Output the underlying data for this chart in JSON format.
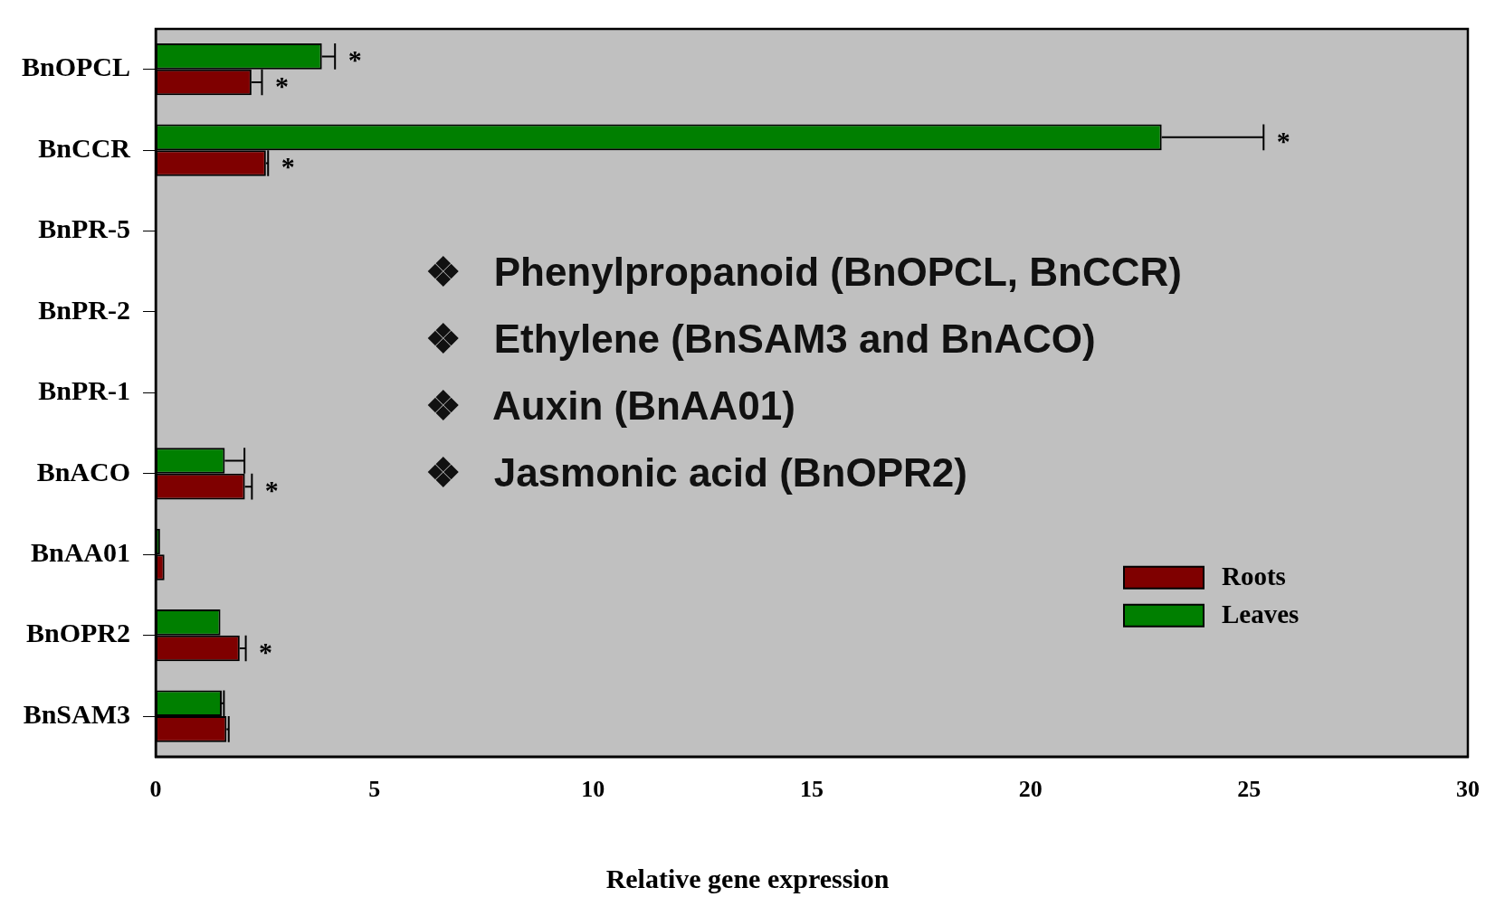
{
  "chart_data": {
    "type": "bar",
    "orientation": "horizontal",
    "xlabel": "Relative gene expression",
    "categories": [
      "BnOPCL",
      "BnCCR",
      "BnPR-5",
      "BnPR-2",
      "BnPR-1",
      "BnACO",
      "BnAA01",
      "BnOPR2",
      "BnSAM3"
    ],
    "series": [
      {
        "name": "Roots",
        "color": "#7f0000",
        "values": [
          2.19,
          2.52,
          0,
          0,
          0,
          2.04,
          0.2,
          1.92,
          1.62
        ],
        "errors": [
          0.24,
          0.05,
          null,
          null,
          null,
          0.16,
          null,
          0.14,
          0.05
        ]
      },
      {
        "name": "Leaves",
        "color": "#007f00",
        "values": [
          3.8,
          23.0,
          0,
          0,
          0,
          1.58,
          0.1,
          1.48,
          1.51
        ],
        "errors": [
          0.3,
          2.33,
          null,
          null,
          null,
          0.45,
          null,
          null,
          0.05
        ]
      }
    ],
    "xlim": [
      0,
      30
    ],
    "xticks": [
      0,
      5,
      10,
      15,
      20,
      25,
      30
    ],
    "grid": false,
    "legend": "bottom right",
    "annotations": [
      "❖   Phenylpropanoid (BnOPCL, BnCCR)",
      "❖   Ethylene (BnSAM3 and BnACO)",
      "❖   Auxin (BnAA01)",
      "❖   Jasmonic acid (BnOPR2)",
      {
        "text": "*",
        "x": 3.8,
        "y": "BnOPCL"
      },
      {
        "text": "*",
        "x": 2.19,
        "y": "BnOPCL"
      },
      {
        "text": "*",
        "x": 25.33,
        "y": "BnCCR"
      },
      {
        "text": "*",
        "x": 2.52,
        "y": "BnCCR"
      },
      {
        "text": "*",
        "x": 2.04,
        "y": "BnACO"
      },
      {
        "text": "*",
        "x": 1.92,
        "y": "BnOPR2"
      }
    ]
  }
}
